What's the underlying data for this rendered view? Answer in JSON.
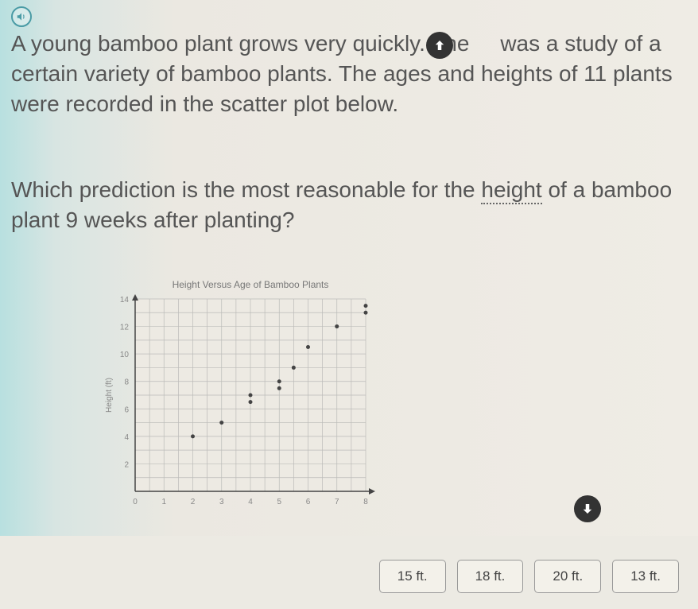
{
  "problem": {
    "paragraph1_part1": "A young bamboo plant grows very quickly. The",
    "paragraph1_part2": "was a study of a certain variety of bamboo plants. The ages and heights of 11 plants were recorded in the scatter plot below.",
    "question_part1": "Which prediction is the most reasonable for the ",
    "question_underlined": "height",
    "question_part2": " of a bamboo plant 9 weeks after planting?"
  },
  "chart": {
    "title": "Height Versus Age of Bamboo Plants",
    "title_fontsize": 12,
    "title_color": "#777777",
    "ylabel": "Height (ft)",
    "label_fontsize": 10,
    "label_color": "#888888",
    "type": "scatter",
    "xlim": [
      0,
      8
    ],
    "ylim": [
      0,
      14
    ],
    "xticks": [
      0,
      1,
      2,
      3,
      4,
      5,
      6,
      7,
      8
    ],
    "yticks": [
      2,
      4,
      6,
      8,
      10,
      12,
      14
    ],
    "grid_color": "#bbbbb8",
    "axis_color": "#444444",
    "background_color": "#edeae3",
    "marker_color": "#444444",
    "marker_radius": 2.5,
    "points": [
      {
        "x": 2,
        "y": 4
      },
      {
        "x": 3,
        "y": 5
      },
      {
        "x": 4,
        "y": 6.5
      },
      {
        "x": 4,
        "y": 7
      },
      {
        "x": 5,
        "y": 7.5
      },
      {
        "x": 5,
        "y": 8
      },
      {
        "x": 5.5,
        "y": 9
      },
      {
        "x": 6,
        "y": 10.5
      },
      {
        "x": 7,
        "y": 12
      },
      {
        "x": 8,
        "y": 13
      },
      {
        "x": 8,
        "y": 13.5
      }
    ]
  },
  "answers": {
    "options": [
      "15 ft.",
      "18 ft.",
      "20 ft.",
      "13 ft."
    ]
  }
}
